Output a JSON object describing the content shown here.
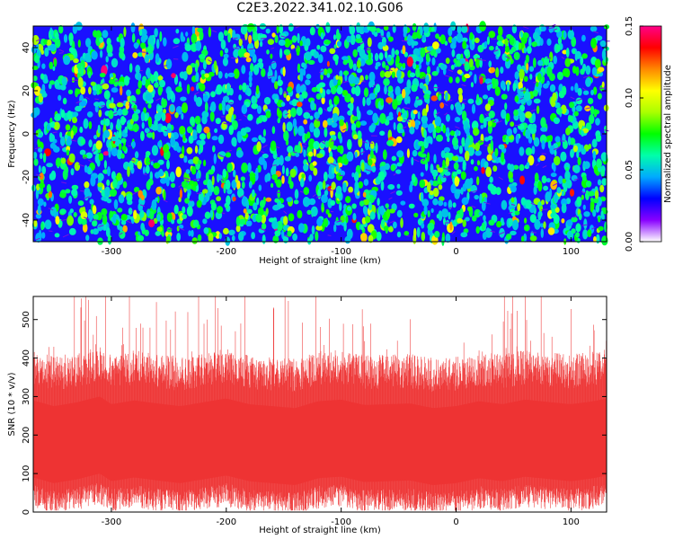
{
  "title": "C2E3.2022.341.02.10.G06",
  "colors": {
    "line": "#ee3333",
    "colormap": [
      "#ffffff",
      "#8800ff",
      "#0000ff",
      "#00aaff",
      "#00ffaa",
      "#00ff00",
      "#aaff00",
      "#ffff00",
      "#ff8800",
      "#ff0000",
      "#ff0088"
    ]
  },
  "chart_data": [
    {
      "type": "heatmap",
      "xlabel": "Height of straight line (km)",
      "ylabel": "Frequency (Hz)",
      "xlim": [
        -368,
        131
      ],
      "ylim": [
        -50,
        50
      ],
      "xticks": [
        -300,
        -200,
        -100,
        0,
        100
      ],
      "yticks": [
        -40,
        -20,
        0,
        20,
        40
      ],
      "grid": false,
      "colorbar": {
        "label": "Normalized spectral amplitude",
        "range": [
          0,
          0.15
        ],
        "ticks": [
          "0.00",
          "0.05",
          "0.10",
          "0.15"
        ]
      }
    },
    {
      "type": "line",
      "xlabel": "Height of straight line (km)",
      "ylabel": "SNR (10 * v/v)",
      "xlim": [
        -368,
        131
      ],
      "ylim": [
        0,
        560
      ],
      "xticks": [
        -300,
        -200,
        -100,
        0,
        100
      ],
      "yticks": [
        0,
        100,
        200,
        300,
        400,
        500
      ],
      "grid": false,
      "series": [
        {
          "x": [
            -368,
            -350,
            -330,
            -310,
            -300,
            -280,
            -260,
            -240,
            -220,
            -200,
            -180,
            -160,
            -140,
            -120,
            -100,
            -80,
            -60,
            -40,
            -20,
            0,
            20,
            40,
            60,
            80,
            100,
            120,
            131
          ],
          "y": [
            180,
            165,
            175,
            190,
            170,
            180,
            172,
            165,
            175,
            185,
            170,
            165,
            160,
            178,
            182,
            168,
            170,
            172,
            160,
            165,
            178,
            170,
            182,
            176,
            170,
            178,
            185
          ]
        }
      ]
    }
  ]
}
